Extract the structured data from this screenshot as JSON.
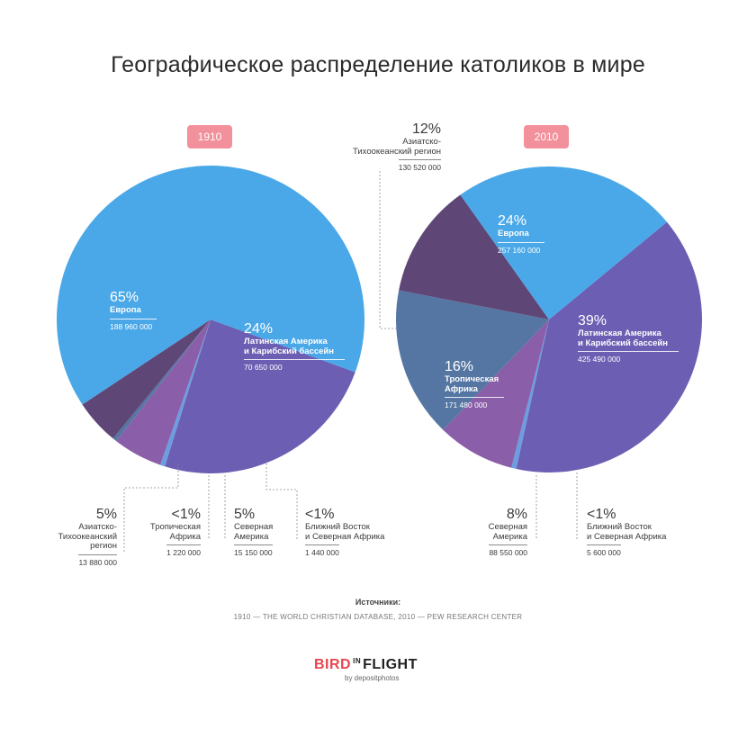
{
  "page": {
    "title": "Географическое распределение католиков в мире",
    "sources_title": "Источники:",
    "sources_text": "1910 — THE WORLD CHRISTIAN DATABASE, 2010 — PEW RESEARCH CENTER",
    "logo_bird": "BIRD",
    "logo_in": "IN",
    "logo_flight": "FLIGHT",
    "logo_sub": "by depositphotos"
  },
  "colors": {
    "europe": "#4aa8e8",
    "latin_america": "#6c5fb3",
    "asia_pacific": "#5e4777",
    "africa": "#5576a3",
    "north_america": "#8a5ea8",
    "middle_east": "#6b9ee0",
    "badge": "#f2909b"
  },
  "chart_data": [
    {
      "type": "pie",
      "title": "1910",
      "series": [
        {
          "name": "Европа",
          "percent_label": "65%",
          "value": 188960000,
          "value_label": "188 960 000",
          "color": "#4aa8e8"
        },
        {
          "name": "Латинская Америка и Карибский бассейн",
          "percent_label": "24%",
          "value": 70650000,
          "value_label": "70 650 000",
          "color": "#6c5fb3"
        },
        {
          "name": "Ближний Восток и Северная Африка",
          "percent_label": "<1%",
          "value": 1440000,
          "value_label": "1 440 000",
          "color": "#6b9ee0"
        },
        {
          "name": "Северная Америка",
          "percent_label": "5%",
          "value": 15150000,
          "value_label": "15 150 000",
          "color": "#8a5ea8"
        },
        {
          "name": "Тропическая Африка",
          "percent_label": "<1%",
          "value": 1220000,
          "value_label": "1 220 000",
          "color": "#5576a3"
        },
        {
          "name": "Азиатско-Тихоокеанский регион",
          "percent_label": "5%",
          "value": 13880000,
          "value_label": "13 880 000",
          "color": "#5e4777"
        }
      ]
    },
    {
      "type": "pie",
      "title": "2010",
      "series": [
        {
          "name": "Европа",
          "percent_label": "24%",
          "value": 257160000,
          "value_label": "257 160 000",
          "color": "#4aa8e8"
        },
        {
          "name": "Латинская Америка и Карибский бассейн",
          "percent_label": "39%",
          "value": 425490000,
          "value_label": "425 490 000",
          "color": "#6c5fb3"
        },
        {
          "name": "Ближний Восток и Северная Африка",
          "percent_label": "<1%",
          "value": 5600000,
          "value_label": "5 600 000",
          "color": "#6b9ee0"
        },
        {
          "name": "Северная Америка",
          "percent_label": "8%",
          "value": 88550000,
          "value_label": "88 550 000",
          "color": "#8a5ea8"
        },
        {
          "name": "Тропическая Африка",
          "percent_label": "16%",
          "value": 171480000,
          "value_label": "171 480 000",
          "color": "#5576a3"
        },
        {
          "name": "Азиатско-Тихоокеанский регион",
          "percent_label": "12%",
          "value": 130520000,
          "value_label": "130 520 000",
          "color": "#5e4777"
        }
      ]
    }
  ],
  "labels_1910": {
    "europe": {
      "pct": "65%",
      "name": "Европа",
      "value": "188 960 000"
    },
    "latin": {
      "pct": "24%",
      "name1": "Латинская Америка",
      "name2": "и Карибский бассейн",
      "value": "70 650 000"
    },
    "asia": {
      "pct": "5%",
      "name1": "Азиатско-",
      "name2": "Тихоокеанский",
      "name3": "регион",
      "value": "13 880 000"
    },
    "africa": {
      "pct": "<1%",
      "name1": "Тропическая",
      "name2": "Африка",
      "value": "1 220 000"
    },
    "namerica": {
      "pct": "5%",
      "name1": "Северная",
      "name2": "Америка",
      "value": "15 150 000"
    },
    "mideast": {
      "pct": "<1%",
      "name1": "Ближний Восток",
      "name2": "и Северная Африка",
      "value": "1 440 000"
    }
  },
  "labels_2010": {
    "europe": {
      "pct": "24%",
      "name": "Европа",
      "value": "257 160 000"
    },
    "latin": {
      "pct": "39%",
      "name1": "Латинская Америка",
      "name2": "и Карибский бассейн",
      "value": "425 490 000"
    },
    "asia": {
      "pct": "12%",
      "name1": "Азиатско-",
      "name2": "Тихоокеанский регион",
      "value": "130 520 000"
    },
    "africa": {
      "pct": "16%",
      "name1": "Тропическая",
      "name2": "Африка",
      "value": "171 480 000"
    },
    "namerica": {
      "pct": "8%",
      "name1": "Северная",
      "name2": "Америка",
      "value": "88 550 000"
    },
    "mideast": {
      "pct": "<1%",
      "name1": "Ближний Восток",
      "name2": "и Северная Африка",
      "value": "5 600 000"
    }
  }
}
